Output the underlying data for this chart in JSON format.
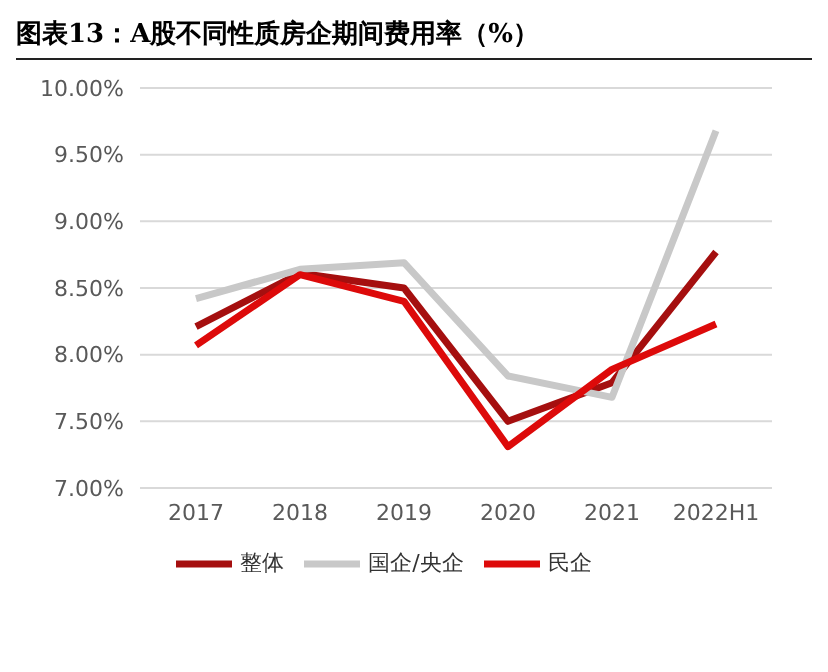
{
  "chart_data": {
    "type": "line",
    "title": "图表13：A股不同性质房企期间费用率（%）",
    "categories": [
      "2017",
      "2018",
      "2019",
      "2020",
      "2021",
      "2022H1"
    ],
    "series": [
      {
        "name": "整体",
        "color": "#a50f0f",
        "values": [
          8.21,
          8.61,
          8.5,
          7.5,
          7.79,
          8.77
        ]
      },
      {
        "name": "国企/央企",
        "color": "#c8c8c8",
        "values": [
          8.42,
          8.64,
          8.69,
          7.84,
          7.68,
          9.68
        ]
      },
      {
        "name": "民企",
        "color": "#dd0a0a",
        "values": [
          8.07,
          8.6,
          8.4,
          7.31,
          7.89,
          8.23
        ]
      }
    ],
    "ylim": [
      7,
      10
    ],
    "yticks": [
      {
        "value": 7,
        "label": "7.00%"
      },
      {
        "value": 7.5,
        "label": "7.50%"
      },
      {
        "value": 8,
        "label": "8.00%"
      },
      {
        "value": 8.5,
        "label": "8.50%"
      },
      {
        "value": 9,
        "label": "9.00%"
      },
      {
        "value": 9.5,
        "label": "9.50%"
      },
      {
        "value": 10,
        "label": "10.00%"
      }
    ],
    "grid": "y",
    "legend": "bottom",
    "marker": "none",
    "line_style": "solid"
  }
}
